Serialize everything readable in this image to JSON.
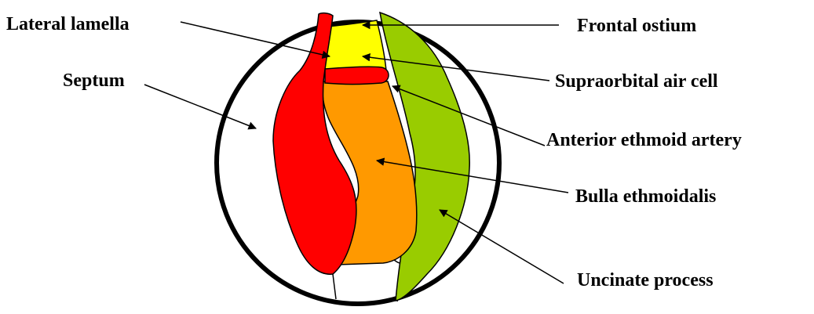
{
  "labels": {
    "lateral_lamella": "Lateral lamella",
    "septum": "Septum",
    "frontal_ostium": "Frontal ostium",
    "supraorbital_air_cell": "Supraorbital air cell",
    "anterior_ethmoid_artery": "Anterior ethmoid artery",
    "bulla_ethmoidalis": "Bulla ethmoidalis",
    "uncinate_process": "Uncinate process"
  },
  "colors": {
    "septum_red": "#ff0000",
    "supraorbital_yellow": "#ffff00",
    "bulla_orange": "#ff9900",
    "uncinate_green": "#99cc00",
    "outline": "#000000"
  }
}
